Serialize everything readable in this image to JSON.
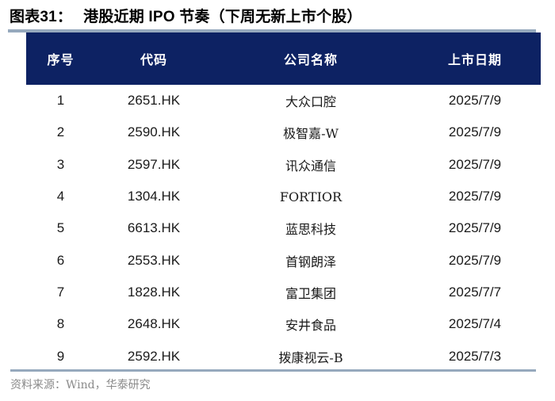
{
  "figure": {
    "label": "图表31：",
    "title": "港股近期 IPO 节奏（下周无新上市个股）"
  },
  "table": {
    "headers": [
      "序号",
      "代码",
      "公司名称",
      "上市日期"
    ],
    "rows": [
      {
        "no": "1",
        "code": "2651.HK",
        "name": "大众口腔",
        "date": "2025/7/9"
      },
      {
        "no": "2",
        "code": "2590.HK",
        "name": "极智嘉-W",
        "date": "2025/7/9"
      },
      {
        "no": "3",
        "code": "2597.HK",
        "name": "讯众通信",
        "date": "2025/7/9"
      },
      {
        "no": "4",
        "code": "1304.HK",
        "name": "FORTIOR",
        "date": "2025/7/9"
      },
      {
        "no": "5",
        "code": "6613.HK",
        "name": "蓝思科技",
        "date": "2025/7/9"
      },
      {
        "no": "6",
        "code": "2553.HK",
        "name": "首钢朗泽",
        "date": "2025/7/9"
      },
      {
        "no": "7",
        "code": "1828.HK",
        "name": "富卫集团",
        "date": "2025/7/7"
      },
      {
        "no": "8",
        "code": "2648.HK",
        "name": "安井食品",
        "date": "2025/7/4"
      },
      {
        "no": "9",
        "code": "2592.HK",
        "name": "拨康视云-B",
        "date": "2025/7/3"
      }
    ]
  },
  "source": {
    "text": "资料来源：Wind，华泰研究"
  },
  "colors": {
    "header_bg": "#0d2263",
    "header_text": "#ffffff",
    "divider": "#96a9bd",
    "source_text": "#8a8a8a",
    "title_text": "#000000",
    "cell_text": "#1a1a1a"
  }
}
